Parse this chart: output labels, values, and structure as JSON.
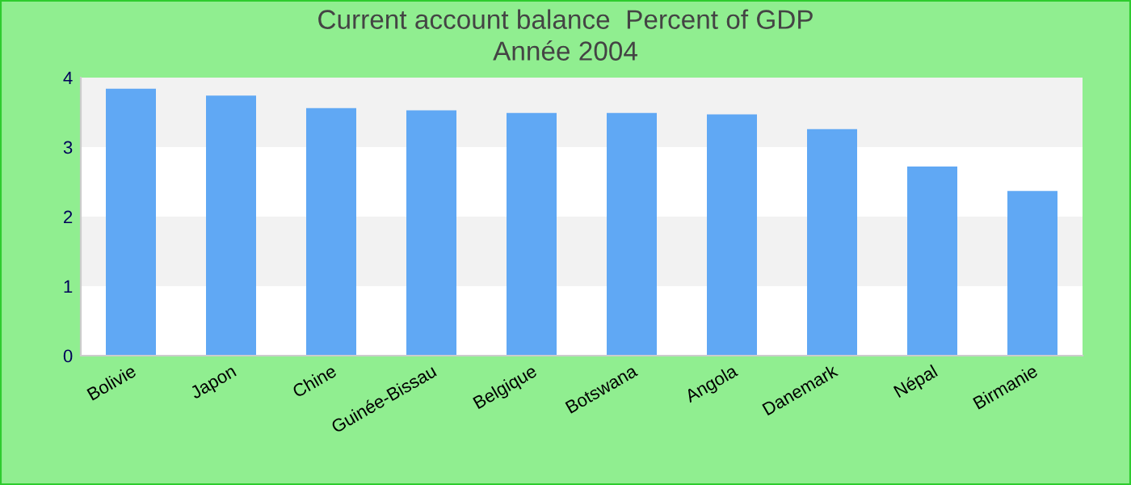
{
  "chart_data": {
    "type": "bar",
    "title": "Current account balance  Percent of GDP",
    "subtitle": "Année 2004",
    "categories": [
      "Bolivie",
      "Japon",
      "Chine",
      "Guinée-Bissau",
      "Belgique",
      "Botswana",
      "Angola",
      "Danemark",
      "Népal",
      "Birmanie"
    ],
    "values": [
      3.84,
      3.74,
      3.56,
      3.53,
      3.49,
      3.49,
      3.47,
      3.26,
      2.72,
      2.37
    ],
    "color": "#60a8f4",
    "ylim": [
      0,
      4
    ],
    "yticks": [
      0,
      1,
      2,
      3,
      4
    ],
    "bands": [
      {
        "axis": "y",
        "from": 3,
        "to": 4,
        "color": "#f2f2f2"
      },
      {
        "axis": "y",
        "from": 1,
        "to": 2,
        "color": "#f2f2f2"
      }
    ]
  }
}
